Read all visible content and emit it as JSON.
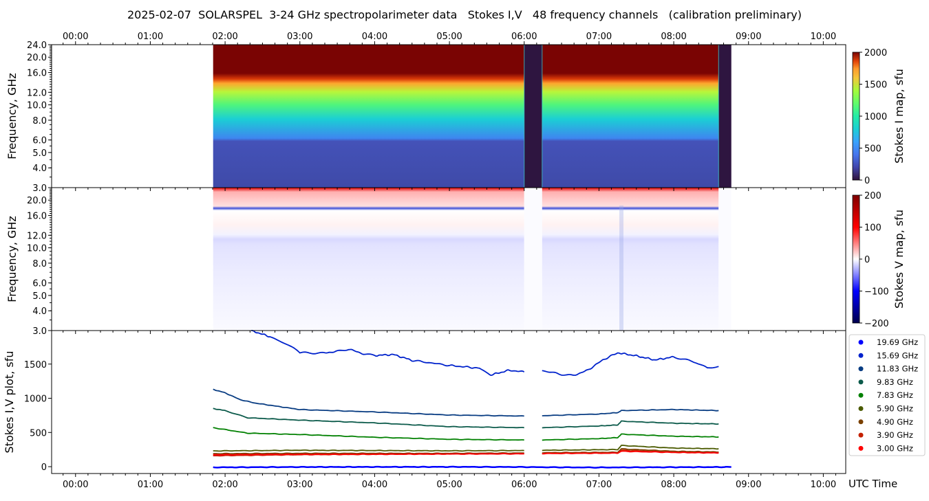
{
  "chart_data": [
    {
      "type": "heatmap",
      "title": "2025-02-07  SOLARSPEL  3-24 GHz spectropolarimeter data   Stokes I,V   48 frequency channels   (calibration preliminary)",
      "panel": "Stokes I map",
      "ylabel": "Frequency, GHz",
      "yscale": "log",
      "ylim": [
        3.0,
        24.0
      ],
      "yticks": [
        "3.0",
        "4.0",
        "5.0",
        "6.0",
        "8.0",
        "10.0",
        "12.0",
        "16.0",
        "20.0",
        "24.0"
      ],
      "xticks": [
        "00:00",
        "01:00",
        "02:00",
        "03:00",
        "04:00",
        "05:00",
        "06:00",
        "07:00",
        "08:00",
        "09:00",
        "10:00"
      ],
      "xlim_hours": [
        -0.32,
        10.3
      ],
      "colorbar": {
        "label": "Stokes I map, sfu",
        "min": 0,
        "max": 2000,
        "ticks": [
          "0",
          "500",
          "1000",
          "1500",
          "2000"
        ]
      },
      "segments": [
        {
          "start_h": 1.84,
          "end_h": 6.0,
          "kind": "data"
        },
        {
          "start_h": 6.0,
          "end_h": 6.24,
          "kind": "calibration"
        },
        {
          "start_h": 6.24,
          "end_h": 8.6,
          "kind": "data"
        },
        {
          "start_h": 8.6,
          "end_h": 8.77,
          "kind": "calibration"
        }
      ],
      "profile_sfu_by_freq_ghz": [
        [
          3.0,
          250
        ],
        [
          5.9,
          300
        ],
        [
          6.1,
          500
        ],
        [
          8.0,
          700
        ],
        [
          10.0,
          900
        ],
        [
          12.0,
          1150
        ],
        [
          14.0,
          1500
        ],
        [
          15.5,
          1800
        ],
        [
          16.5,
          2000
        ],
        [
          24.0,
          2000
        ]
      ]
    },
    {
      "type": "heatmap",
      "panel": "Stokes V map",
      "ylabel": "Frequency, GHz",
      "yscale": "log",
      "ylim": [
        3.0,
        24.0
      ],
      "yticks": [
        "3.0",
        "4.0",
        "5.0",
        "6.0",
        "8.0",
        "10.0",
        "12.0",
        "16.0",
        "20.0"
      ],
      "colorbar": {
        "label": "Stokes V map, sfu",
        "min": -200,
        "max": 200,
        "ticks": [
          "-200",
          "-100",
          "0",
          "100",
          "200"
        ]
      },
      "profile_sfu_by_freq_ghz": [
        [
          3.3,
          -5
        ],
        [
          5.0,
          -10
        ],
        [
          8.0,
          -12
        ],
        [
          11.5,
          -25
        ],
        [
          12.2,
          -15
        ],
        [
          14.0,
          5
        ],
        [
          16.5,
          -5
        ],
        [
          18.0,
          -60
        ],
        [
          18.5,
          20
        ],
        [
          19.5,
          30
        ],
        [
          20.5,
          55
        ],
        [
          22.0,
          70
        ],
        [
          23.5,
          150
        ],
        [
          24.0,
          180
        ]
      ]
    },
    {
      "type": "line",
      "panel": "Stokes I,V plot",
      "ylabel": "Stokes I,V plot, sfu",
      "xlabel": "UTC Time",
      "ylim": [
        -100,
        1990
      ],
      "yticks": [
        "0",
        "500",
        "1000",
        "1500"
      ],
      "legend_position": "right",
      "series": [
        {
          "name": "19.69 GHz",
          "color": "#0000ff",
          "points": [
            [
              1.84,
              -10
            ],
            [
              3,
              -5
            ],
            [
              5,
              -3
            ],
            [
              6.0,
              -5
            ],
            [
              6.24,
              -8
            ],
            [
              7,
              -12
            ],
            [
              8,
              -8
            ],
            [
              8.77,
              -5
            ]
          ]
        },
        {
          "name": "15.69 GHz",
          "color": "#0022cc",
          "points": [
            [
              2.35,
              1990
            ],
            [
              2.6,
              1900
            ],
            [
              2.9,
              1750
            ],
            [
              3.0,
              1665
            ],
            [
              3.3,
              1660
            ],
            [
              3.5,
              1685
            ],
            [
              3.65,
              1720
            ],
            [
              3.85,
              1650
            ],
            [
              4.0,
              1625
            ],
            [
              4.25,
              1640
            ],
            [
              4.5,
              1555
            ],
            [
              5.0,
              1480
            ],
            [
              5.4,
              1440
            ],
            [
              5.55,
              1340
            ],
            [
              5.8,
              1410
            ],
            [
              6.0,
              1385
            ],
            [
              null,
              null
            ],
            [
              6.24,
              1405
            ],
            [
              6.5,
              1350
            ],
            [
              6.65,
              1330
            ],
            [
              6.85,
              1410
            ],
            [
              7.05,
              1560
            ],
            [
              7.25,
              1665
            ],
            [
              7.5,
              1620
            ],
            [
              7.75,
              1560
            ],
            [
              8.0,
              1605
            ],
            [
              8.3,
              1525
            ],
            [
              8.45,
              1440
            ],
            [
              8.6,
              1465
            ]
          ]
        },
        {
          "name": "11.83 GHz",
          "color": "#083c82",
          "points": [
            [
              1.84,
              1130
            ],
            [
              2.0,
              1080
            ],
            [
              2.2,
              980
            ],
            [
              2.4,
              930
            ],
            [
              3.0,
              835
            ],
            [
              4.0,
              800
            ],
            [
              5.0,
              755
            ],
            [
              6.0,
              740
            ],
            [
              null,
              null
            ],
            [
              6.24,
              745
            ],
            [
              7.0,
              770
            ],
            [
              7.25,
              790
            ],
            [
              7.3,
              820
            ],
            [
              8.0,
              835
            ],
            [
              8.6,
              820
            ]
          ]
        },
        {
          "name": "9.83 GHz",
          "color": "#0b5a4a",
          "points": [
            [
              1.84,
              850
            ],
            [
              2.0,
              820
            ],
            [
              2.3,
              715
            ],
            [
              3.0,
              680
            ],
            [
              4.0,
              640
            ],
            [
              5.0,
              585
            ],
            [
              6.0,
              570
            ],
            [
              null,
              null
            ],
            [
              6.24,
              570
            ],
            [
              7.0,
              595
            ],
            [
              7.25,
              610
            ],
            [
              7.3,
              665
            ],
            [
              8.0,
              635
            ],
            [
              8.6,
              625
            ]
          ]
        },
        {
          "name": "7.83 GHz",
          "color": "#008000",
          "points": [
            [
              1.84,
              570
            ],
            [
              2.3,
              490
            ],
            [
              3.0,
              470
            ],
            [
              4.0,
              430
            ],
            [
              5.0,
              400
            ],
            [
              6.0,
              390
            ],
            [
              null,
              null
            ],
            [
              6.24,
              390
            ],
            [
              7.0,
              410
            ],
            [
              7.25,
              425
            ],
            [
              7.3,
              475
            ],
            [
              8.0,
              445
            ],
            [
              8.6,
              435
            ]
          ]
        },
        {
          "name": "5.90 GHz",
          "color": "#4a5a00",
          "points": [
            [
              1.84,
              230
            ],
            [
              3.0,
              240
            ],
            [
              5.0,
              232
            ],
            [
              6.0,
              236
            ],
            [
              null,
              null
            ],
            [
              6.24,
              240
            ],
            [
              7.25,
              250
            ],
            [
              7.3,
              310
            ],
            [
              8.0,
              272
            ],
            [
              8.6,
              262
            ]
          ]
        },
        {
          "name": "4.90 GHz",
          "color": "#7a4000",
          "points": [
            [
              1.84,
              190
            ],
            [
              3.0,
              195
            ],
            [
              5.0,
              195
            ],
            [
              6.0,
              200
            ],
            [
              null,
              null
            ],
            [
              6.24,
              205
            ],
            [
              7.25,
              210
            ],
            [
              7.3,
              260
            ],
            [
              8.0,
              225
            ],
            [
              8.6,
              215
            ]
          ]
        },
        {
          "name": "3.90 GHz",
          "color": "#c42000",
          "points": [
            [
              1.84,
              160
            ],
            [
              3.0,
              175
            ],
            [
              5.0,
              185
            ],
            [
              6.0,
              190
            ],
            [
              null,
              null
            ],
            [
              6.24,
              195
            ],
            [
              7.25,
              200
            ],
            [
              7.3,
              240
            ],
            [
              8.0,
              210
            ],
            [
              8.6,
              205
            ]
          ]
        },
        {
          "name": "3.00 GHz",
          "color": "#ff0000",
          "points": [
            [
              1.84,
              175
            ],
            [
              3.0,
              180
            ],
            [
              5.0,
              185
            ],
            [
              6.0,
              188
            ],
            [
              null,
              null
            ],
            [
              6.24,
              192
            ],
            [
              7.25,
              198
            ],
            [
              7.3,
              225
            ],
            [
              8.0,
              208
            ],
            [
              8.6,
              200
            ]
          ]
        }
      ]
    }
  ]
}
